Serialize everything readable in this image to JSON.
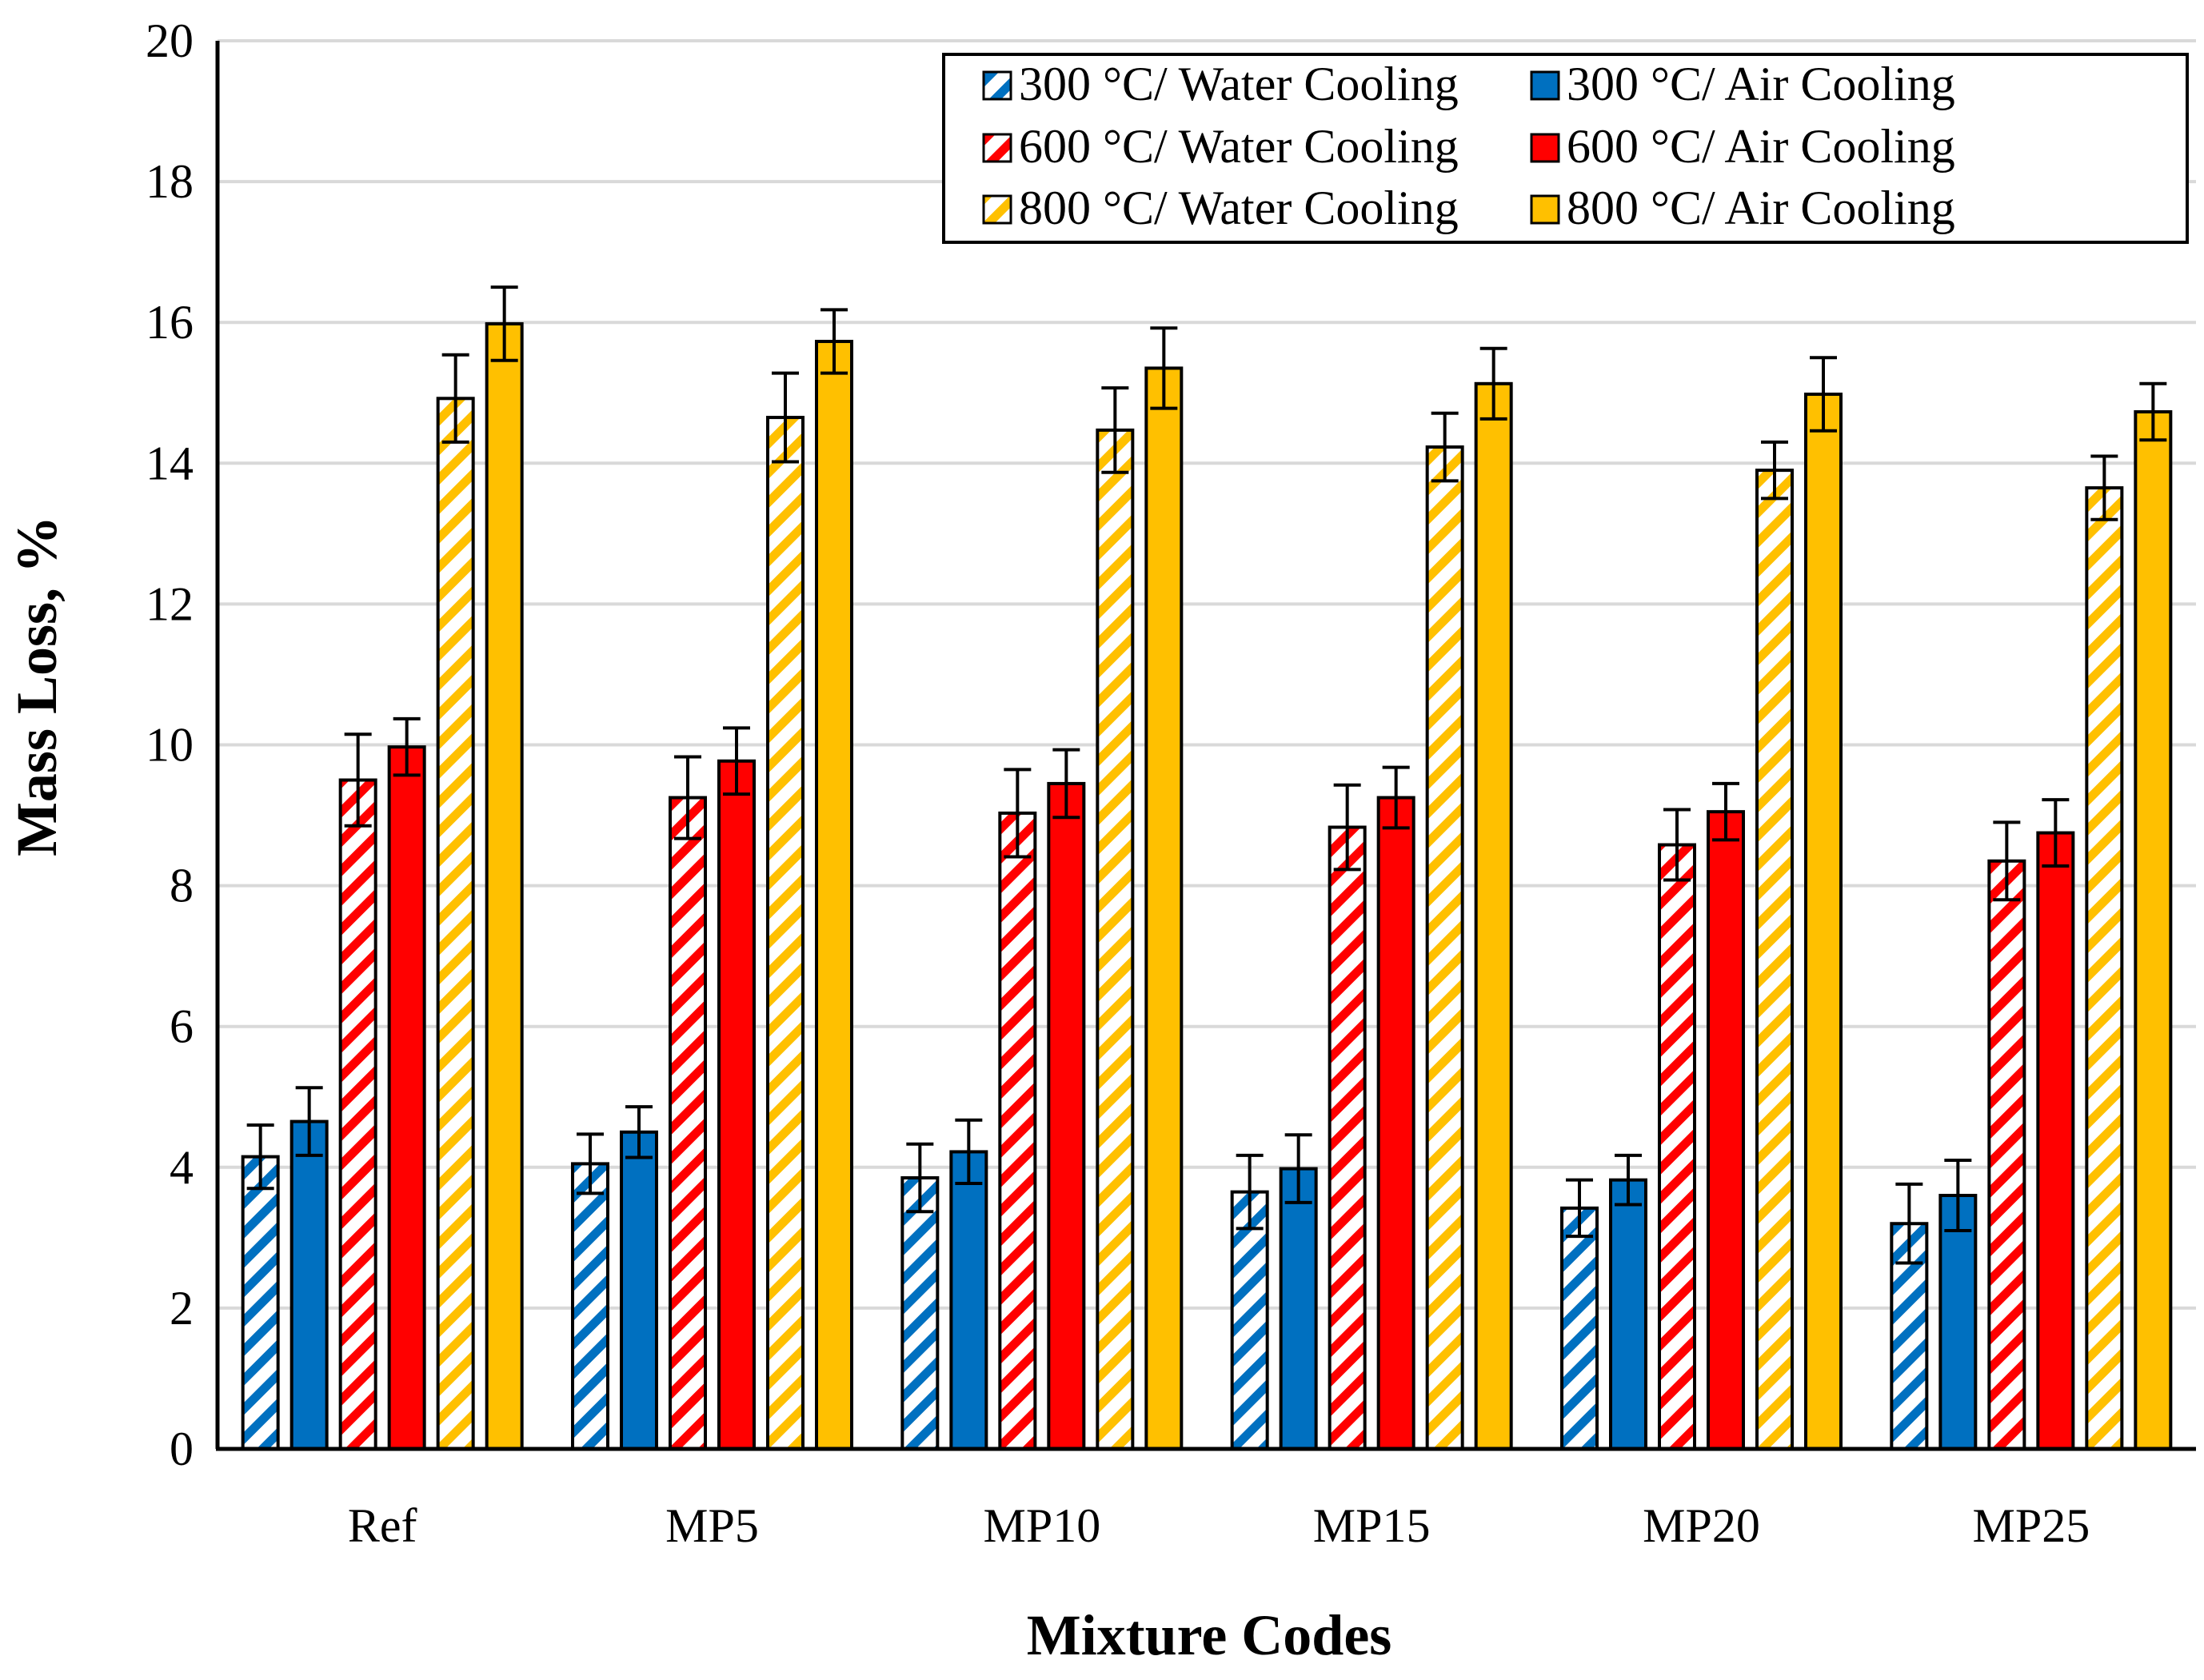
{
  "chart_data": {
    "type": "bar",
    "xlabel": "Mixture Codes",
    "ylabel": "Mass Loss, %",
    "ylim": [
      0,
      20
    ],
    "yticks": [
      "0",
      "2",
      "4",
      "6",
      "8",
      "10",
      "12",
      "14",
      "16",
      "18",
      "20"
    ],
    "grid": "horizontal",
    "legend_position": "top-right",
    "categories": [
      "Ref",
      "MP5",
      "MP10",
      "MP15",
      "MP20",
      "MP25"
    ],
    "series": [
      {
        "name": "300 °C/ Water Cooling",
        "color": "#0070C0",
        "pattern": "hatched",
        "values": [
          4.15,
          4.05,
          3.85,
          3.65,
          3.42,
          3.2
        ],
        "errors": [
          0.45,
          0.42,
          0.48,
          0.52,
          0.4,
          0.56
        ]
      },
      {
        "name": "300 °C/ Air Cooling",
        "color": "#0070C0",
        "pattern": "solid",
        "values": [
          4.65,
          4.5,
          4.22,
          3.98,
          3.82,
          3.6
        ],
        "errors": [
          0.48,
          0.36,
          0.45,
          0.48,
          0.35,
          0.5
        ]
      },
      {
        "name": "600 °C/ Water Cooling",
        "color": "#FF0000",
        "pattern": "hatched",
        "values": [
          9.5,
          9.25,
          9.03,
          8.83,
          8.58,
          8.35
        ],
        "errors": [
          0.65,
          0.58,
          0.62,
          0.6,
          0.5,
          0.55
        ]
      },
      {
        "name": "600 °C/ Air Cooling",
        "color": "#FF0000",
        "pattern": "solid",
        "values": [
          9.97,
          9.77,
          9.45,
          9.25,
          9.05,
          8.75
        ],
        "errors": [
          0.4,
          0.47,
          0.48,
          0.43,
          0.4,
          0.47
        ]
      },
      {
        "name": "800 °C/ Water Cooling",
        "color": "#FFC000",
        "pattern": "hatched",
        "values": [
          14.92,
          14.65,
          14.47,
          14.23,
          13.9,
          13.65
        ],
        "errors": [
          0.62,
          0.63,
          0.6,
          0.48,
          0.4,
          0.45
        ]
      },
      {
        "name": "800 °C/ Air Cooling",
        "color": "#FFC000",
        "pattern": "solid",
        "values": [
          15.98,
          15.73,
          15.35,
          15.13,
          14.98,
          14.73
        ],
        "errors": [
          0.52,
          0.45,
          0.57,
          0.5,
          0.52,
          0.4
        ]
      }
    ]
  }
}
